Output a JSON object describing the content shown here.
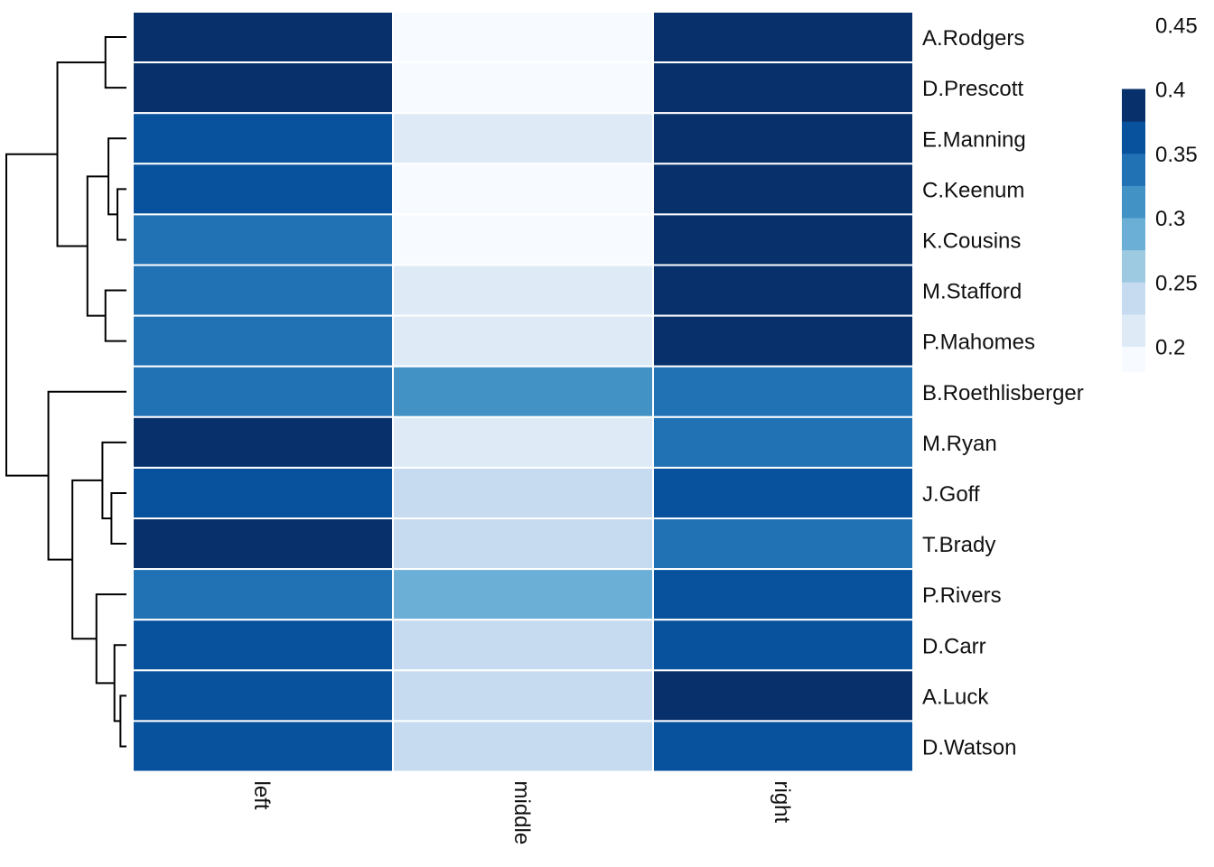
{
  "chart_data": {
    "type": "heatmap",
    "title": "",
    "xlabel": "",
    "ylabel": "",
    "columns": [
      "left",
      "middle",
      "right"
    ],
    "rows": [
      "A.Rodgers",
      "D.Prescott",
      "E.Manning",
      "C.Keenum",
      "K.Cousins",
      "M.Stafford",
      "P.Mahomes",
      "B.Roethlisberger",
      "M.Ryan",
      "J.Goff",
      "T.Brady",
      "P.Rivers",
      "D.Carr",
      "A.Luck",
      "D.Watson"
    ],
    "values": [
      [
        0.46,
        0.19,
        0.41
      ],
      [
        0.41,
        0.19,
        0.41
      ],
      [
        0.37,
        0.21,
        0.46
      ],
      [
        0.37,
        0.19,
        0.46
      ],
      [
        0.34,
        0.19,
        0.46
      ],
      [
        0.34,
        0.21,
        0.41
      ],
      [
        0.34,
        0.21,
        0.46
      ],
      [
        0.34,
        0.31,
        0.34
      ],
      [
        0.41,
        0.21,
        0.34
      ],
      [
        0.37,
        0.24,
        0.37
      ],
      [
        0.41,
        0.24,
        0.34
      ],
      [
        0.34,
        0.28,
        0.37
      ],
      [
        0.37,
        0.24,
        0.37
      ],
      [
        0.37,
        0.24,
        0.41
      ],
      [
        0.37,
        0.24,
        0.37
      ]
    ],
    "color_scale": {
      "breaks": [
        0.175,
        0.2,
        0.225,
        0.25,
        0.275,
        0.3,
        0.325,
        0.35,
        0.375,
        0.4,
        0.425,
        0.45,
        0.475
      ],
      "colors": [
        "#f7fbff",
        "#deebf7",
        "#c6dbef",
        "#9ecae1",
        "#6baed6",
        "#4292c6",
        "#2171b5",
        "#08519c",
        "#08306b"
      ],
      "legend_ticks": [
        0.2,
        0.25,
        0.3,
        0.35,
        0.4,
        0.45
      ],
      "legend_tick_labels": [
        "0.2",
        "0.25",
        "0.3",
        "0.35",
        "0.4",
        "0.45"
      ],
      "legend_range": [
        0.18,
        0.46
      ]
    },
    "row_dendrogram": {
      "merges": [
        [
          0,
          1,
          0.7
        ],
        [
          3,
          4,
          0.3
        ],
        [
          2,
          16,
          0.6
        ],
        [
          5,
          6,
          0.7
        ],
        [
          17,
          18,
          1.3
        ],
        [
          15,
          19,
          2.3
        ],
        [
          9,
          10,
          0.5
        ],
        [
          8,
          21,
          0.8
        ],
        [
          13,
          14,
          0.2
        ],
        [
          12,
          23,
          0.4
        ],
        [
          11,
          24,
          1.0
        ],
        [
          22,
          25,
          1.8
        ],
        [
          7,
          26,
          2.6
        ],
        [
          20,
          27,
          4.0
        ]
      ],
      "max_height": 4.0
    },
    "grid": false,
    "legend_position": "top-right"
  }
}
